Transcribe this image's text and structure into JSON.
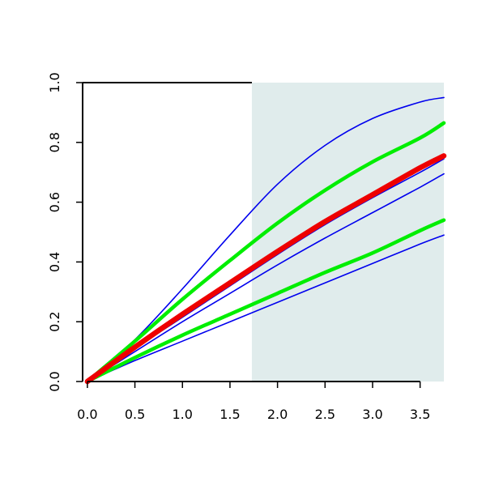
{
  "chart_data": {
    "type": "line",
    "title": "",
    "xlabel": "",
    "ylabel": "",
    "xlim": [
      -0.05,
      3.75
    ],
    "ylim": [
      0,
      1.0
    ],
    "x_ticks": [
      0.0,
      0.5,
      1.0,
      1.5,
      2.0,
      2.5,
      3.0,
      3.5
    ],
    "x_tick_labels": [
      "0.0",
      "0.5",
      "1.0",
      "1.5",
      "2.0",
      "2.5",
      "3.0",
      "3.5"
    ],
    "y_ticks": [
      0.0,
      0.2,
      0.4,
      0.6,
      0.8,
      1.0
    ],
    "y_tick_labels": [
      "0.0",
      "0.2",
      "0.4",
      "0.6",
      "0.8",
      "1.0"
    ],
    "grid": false,
    "shaded_region": {
      "x": [
        1.73,
        3.75
      ],
      "color": "#e0ecec"
    },
    "x": [
      0.0,
      0.5,
      1.0,
      1.5,
      2.0,
      2.5,
      3.0,
      3.5,
      3.75
    ],
    "series": [
      {
        "role": "upper-thin",
        "color": "#0000ee",
        "width": "thin",
        "values": [
          0.0,
          0.14,
          0.31,
          0.49,
          0.66,
          0.79,
          0.88,
          0.935,
          0.95
        ]
      },
      {
        "role": "upper-thick",
        "color": "#00ee00",
        "width": "thick",
        "values": [
          0.0,
          0.135,
          0.275,
          0.405,
          0.53,
          0.64,
          0.735,
          0.815,
          0.865
        ]
      },
      {
        "role": "center",
        "color": "#ee0000",
        "width": "heavy",
        "values": [
          0.0,
          0.115,
          0.225,
          0.33,
          0.435,
          0.535,
          0.625,
          0.715,
          0.755
        ]
      },
      {
        "role": "center-thin",
        "color": "#0000ee",
        "width": "thin",
        "values": [
          0.0,
          0.11,
          0.215,
          0.32,
          0.425,
          0.525,
          0.615,
          0.7,
          0.745
        ]
      },
      {
        "role": "mid-thin",
        "color": "#0000ee",
        "width": "thin",
        "values": [
          0.0,
          0.1,
          0.2,
          0.295,
          0.39,
          0.48,
          0.565,
          0.65,
          0.695
        ]
      },
      {
        "role": "lower-thick",
        "color": "#00ee00",
        "width": "thick",
        "values": [
          0.0,
          0.08,
          0.155,
          0.225,
          0.295,
          0.365,
          0.43,
          0.505,
          0.54
        ]
      },
      {
        "role": "lower-thin",
        "color": "#0000ee",
        "width": "thin",
        "values": [
          0.0,
          0.07,
          0.135,
          0.2,
          0.265,
          0.33,
          0.395,
          0.46,
          0.49
        ]
      }
    ]
  }
}
